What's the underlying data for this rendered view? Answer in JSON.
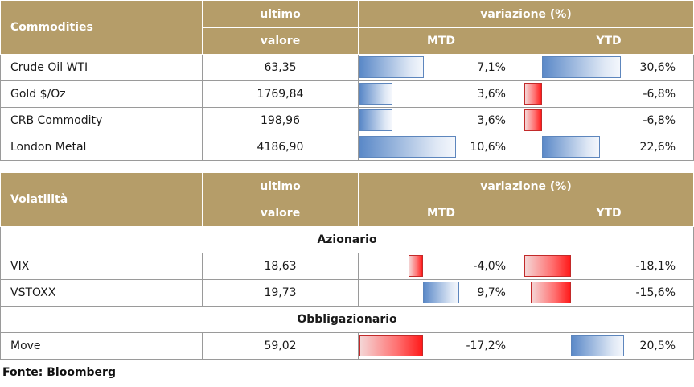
{
  "commodities": {
    "header": {
      "label": "Commodities",
      "last_top": "ultimo",
      "last_bottom": "valore",
      "change": "variazione (%)",
      "mtd": "MTD",
      "ytd": "YTD"
    },
    "rows": [
      {
        "name": "Crude Oil WTI",
        "value": "63,35",
        "mtd": "7,1%",
        "mtd_num": 7.1,
        "ytd": "30,6%",
        "ytd_num": 30.6
      },
      {
        "name": "Gold $/Oz",
        "value": "1769,84",
        "mtd": "3,6%",
        "mtd_num": 3.6,
        "ytd": "-6,8%",
        "ytd_num": -6.8
      },
      {
        "name": "CRB Commodity",
        "value": "198,96",
        "mtd": "3,6%",
        "mtd_num": 3.6,
        "ytd": "-6,8%",
        "ytd_num": -6.8
      },
      {
        "name": "London Metal",
        "value": "4186,90",
        "mtd": "10,6%",
        "mtd_num": 10.6,
        "ytd": "22,6%",
        "ytd_num": 22.6
      }
    ]
  },
  "volatility": {
    "header": {
      "label": "Volatilità",
      "last_top": "ultimo",
      "last_bottom": "valore",
      "change": "variazione (%)",
      "mtd": "MTD",
      "ytd": "YTD"
    },
    "section_equity": "Azionario",
    "equity_rows": [
      {
        "name": "VIX",
        "value": "18,63",
        "mtd": "-4,0%",
        "mtd_num": -4.0,
        "ytd": "-18,1%",
        "ytd_num": -18.1
      },
      {
        "name": "VSTOXX",
        "value": "19,73",
        "mtd": "9,7%",
        "mtd_num": 9.7,
        "ytd": "-15,6%",
        "ytd_num": -15.6
      }
    ],
    "section_bond": "Obbligazionario",
    "bond_rows": [
      {
        "name": "Move",
        "value": "59,02",
        "mtd": "-17,2%",
        "mtd_num": -17.2,
        "ytd": "20,5%",
        "ytd_num": 20.5
      }
    ]
  },
  "source": "Fonte: Bloomberg",
  "colors": {
    "header_bg": "#b59d69",
    "positive_bar": "#5b89c8",
    "negative_bar": "#ff1a1a"
  }
}
